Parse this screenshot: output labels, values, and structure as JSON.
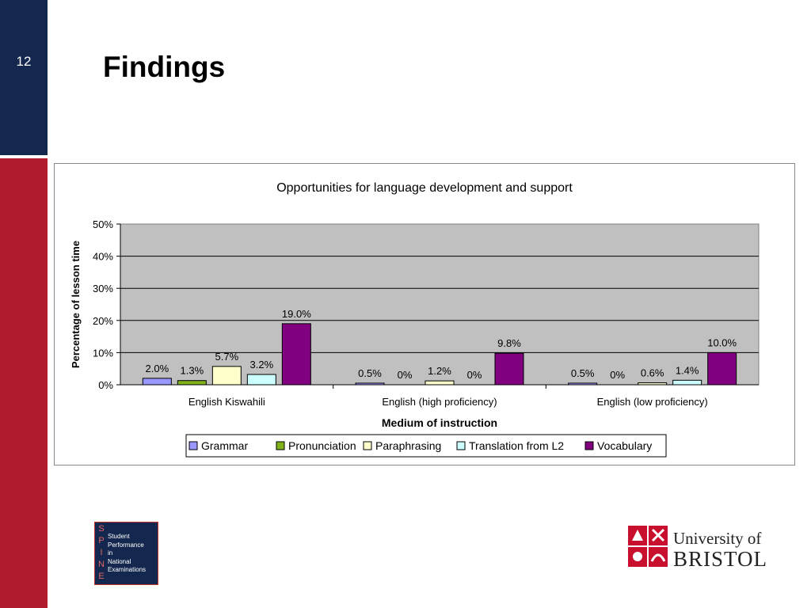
{
  "slide": {
    "number": "12",
    "title": "Findings"
  },
  "chart_data": {
    "type": "bar",
    "title": "Opportunities for language development and support",
    "xlabel": "Medium of instruction",
    "ylabel": "Percentage of lesson time",
    "ylim": [
      0,
      50
    ],
    "yticks": [
      "0%",
      "10%",
      "20%",
      "30%",
      "40%",
      "50%"
    ],
    "categories": [
      "English Kiswahili",
      "English (high proficiency)",
      "English (low proficiency)"
    ],
    "grid": true,
    "legend_position": "bottom",
    "series": [
      {
        "name": "Grammar",
        "color": "#9999ff",
        "values": [
          2.0,
          0.5,
          0.5
        ],
        "labels": [
          "2.0%",
          "0.5%",
          "0.5%"
        ]
      },
      {
        "name": "Pronunciation",
        "color": "#80b31a",
        "values": [
          1.3,
          0,
          0
        ],
        "labels": [
          "1.3%",
          "0%",
          "0%"
        ]
      },
      {
        "name": "Paraphrasing",
        "color": "#ffffcc",
        "values": [
          5.7,
          1.2,
          0.6
        ],
        "labels": [
          "5.7%",
          "1.2%",
          "0.6%"
        ]
      },
      {
        "name": "Translation from L2",
        "color": "#ccffff",
        "values": [
          3.2,
          0,
          1.4
        ],
        "labels": [
          "3.2%",
          "0%",
          "1.4%"
        ]
      },
      {
        "name": "Vocabulary",
        "color": "#800080",
        "values": [
          19.0,
          9.8,
          10.0
        ],
        "labels": [
          "19.0%",
          "9.8%",
          "10.0%"
        ]
      }
    ],
    "plot_background": "#c0c0c0"
  },
  "logos": {
    "spine": {
      "letters": [
        "S",
        "P",
        "I",
        "N",
        "E"
      ],
      "words": [
        "Student",
        "Performance",
        "in",
        "National",
        "Examinations"
      ]
    },
    "university": {
      "line1": "University of",
      "line2": "BRISTOL"
    }
  }
}
